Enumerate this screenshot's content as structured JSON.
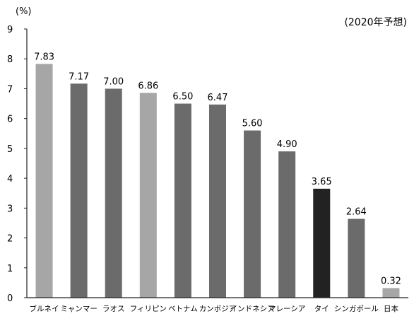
{
  "chart_data": {
    "type": "bar",
    "unit_label": "(%)",
    "note": "(2020年予想)",
    "title": "",
    "xlabel": "",
    "ylabel": "",
    "ylim": [
      0,
      9
    ],
    "yticks": [
      0,
      1,
      2,
      3,
      4,
      5,
      6,
      7,
      8,
      9
    ],
    "grid": false,
    "categories": [
      "ブルネイ",
      "ミャンマー",
      "ラオス",
      "フィリピン",
      "ベトナム",
      "カンボジア",
      "インドネシア",
      "マレーシア",
      "タイ",
      "シンガポール",
      "日本"
    ],
    "values": [
      7.83,
      7.17,
      7.0,
      6.86,
      6.5,
      6.47,
      5.6,
      4.9,
      3.65,
      2.64,
      0.32
    ],
    "value_labels": [
      "7.83",
      "7.17",
      "7.00",
      "6.86",
      "6.50",
      "6.47",
      "5.60",
      "4.90",
      "3.65",
      "2.64",
      "0.32"
    ],
    "colors": [
      "#a6a6a6",
      "#6b6b6b",
      "#6b6b6b",
      "#a6a6a6",
      "#6b6b6b",
      "#6b6b6b",
      "#6b6b6b",
      "#6b6b6b",
      "#222222",
      "#6b6b6b",
      "#a6a6a6"
    ]
  }
}
